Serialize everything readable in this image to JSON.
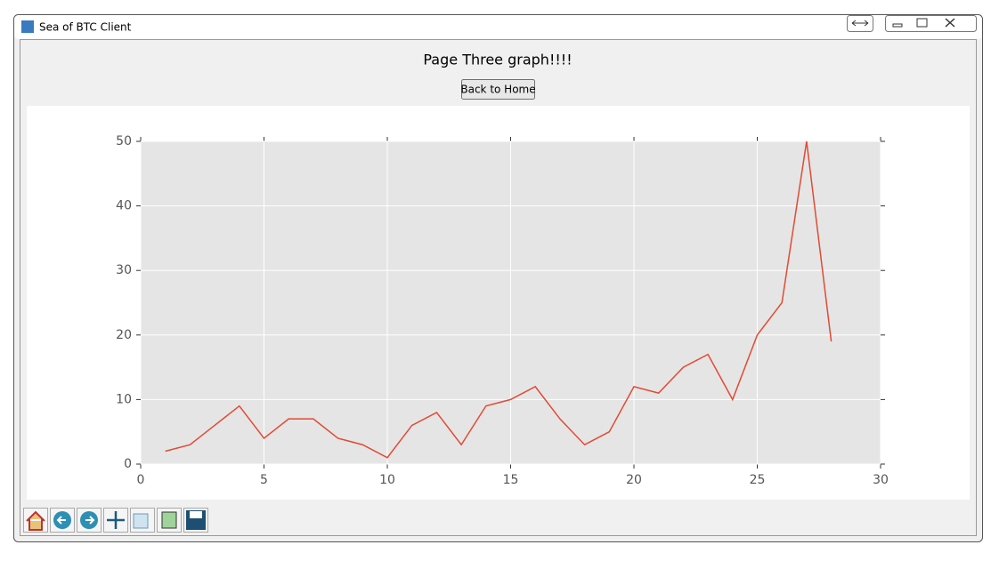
{
  "window": {
    "title": "Sea of BTC Client"
  },
  "page": {
    "heading": "Page Three graph!!!!",
    "button": "Back to Home"
  },
  "chart_data": {
    "type": "line",
    "x": [
      1,
      2,
      3,
      4,
      5,
      6,
      7,
      8,
      9,
      10,
      11,
      12,
      13,
      14,
      15,
      16,
      17,
      18,
      19,
      20,
      21,
      22,
      23,
      24,
      25,
      26,
      27,
      28
    ],
    "series": [
      {
        "color": "#e24a33",
        "values": [
          2,
          3,
          6,
          9,
          4,
          7,
          7,
          4,
          3,
          1,
          6,
          8,
          3,
          9,
          10,
          12,
          7,
          3,
          5,
          12,
          11,
          15,
          17,
          10,
          20,
          25,
          50,
          19
        ]
      }
    ],
    "xlim": [
      0,
      30
    ],
    "ylim": [
      0,
      50
    ],
    "xticks": [
      0,
      5,
      10,
      15,
      20,
      25,
      30
    ],
    "yticks": [
      0,
      10,
      20,
      30,
      40,
      50
    ],
    "grid": true,
    "background": "#e5e5e5"
  }
}
